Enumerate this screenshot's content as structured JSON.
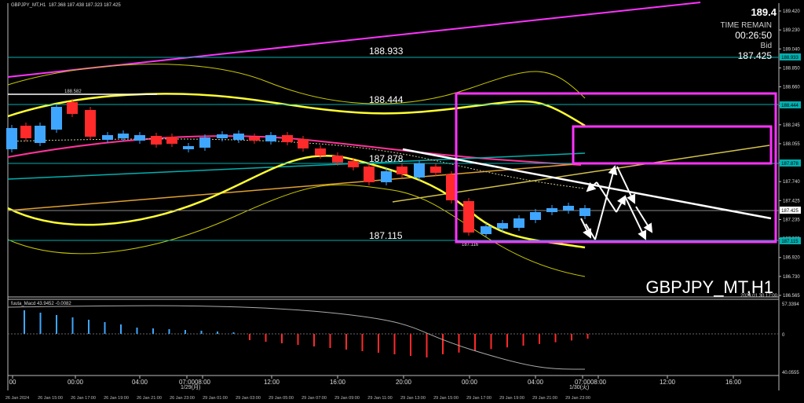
{
  "header": {
    "symbol_info": "GBPJPY_MT,H1",
    "ohlc": "187.368 187.438 187.323 187.425"
  },
  "info_panel": {
    "top_price": "189.4",
    "time_remain_label": "TIME REMAIN",
    "time_remain": "00:26:50",
    "bid_label": "Bid",
    "bid_value": "187.425"
  },
  "watermark": {
    "symbol": "GBPJPY_MT,H1",
    "timestamp": "2024.01.30 17:00"
  },
  "levels": [
    {
      "label": "188.933",
      "tag": "188.933",
      "price": 188.933
    },
    {
      "label": "188.444",
      "tag": "188.444",
      "price": 188.444
    },
    {
      "label": "187.878",
      "tag": "187.878",
      "price": 187.878
    },
    {
      "label": "187.115",
      "tag": "187.115",
      "price": 187.115
    }
  ],
  "small_labels": {
    "high": "188.582",
    "low": "187.116"
  },
  "price_axis": {
    "ticks": [
      "189.420",
      "189.230",
      "189.040",
      "188.850",
      "188.660",
      "188.470",
      "188.245",
      "188.055",
      "187.930",
      "187.740",
      "187.425",
      "187.235",
      "187.065",
      "186.920",
      "186.730",
      "186.565"
    ],
    "current_tag": "187.425",
    "current_price": 187.425
  },
  "time_axis": {
    "major": [
      "00",
      "00:00",
      "04:00",
      "07:00",
      "08:00",
      "12:00",
      "16:00",
      "20:00",
      "00:00",
      "04:00",
      "07:00",
      "08:00",
      "12:00",
      "16:00"
    ],
    "minor": [
      "26 Jan 2024",
      "26 Jan 15:00",
      "26 Jan 17:00",
      "26 Jan 19:00",
      "26 Jan 21:00",
      "26 Jan 23:00",
      "29 Jan 01:00",
      "29 Jan 03:00",
      "29 Jan 05:00",
      "29 Jan 07:00",
      "29 Jan 09:00",
      "29 Jan 11:00",
      "29 Jan 13:00",
      "29 Jan 15:00",
      "29 Jan 17:00",
      "29 Jan 19:00",
      "29 Jan 21:00",
      "29 Jan 23:00"
    ],
    "date_markers": [
      "1/29(月)",
      "1/30(火)"
    ]
  },
  "macd": {
    "label": "fuuta_Macd 43.9452  -0.0082",
    "axis_top": "57.3394",
    "axis_zero": "0",
    "axis_bottom": "40.0555"
  },
  "colors": {
    "background": "#000000",
    "bull": "#3fa6ff",
    "bear": "#ff2a2a",
    "magenta": "#ff33ff",
    "yellow": "#e6e600",
    "cyan": "#00b0b0",
    "white": "#ffffff"
  }
}
